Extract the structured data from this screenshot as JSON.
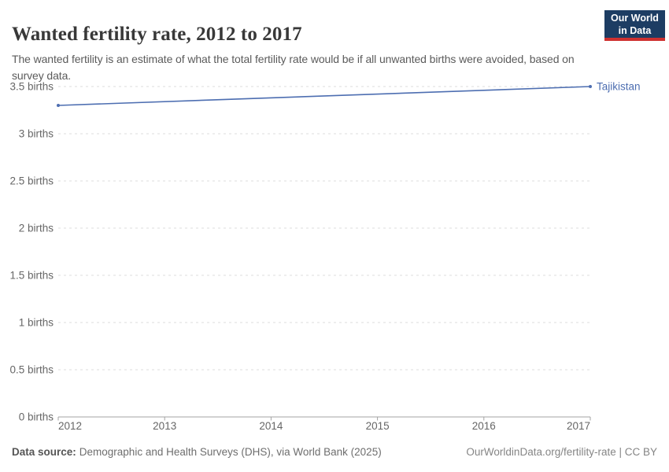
{
  "header": {
    "title": "Wanted fertility rate, 2012 to 2017",
    "subtitle": "The wanted fertility is an estimate of what the total fertility rate would be if all unwanted births were avoided, based on survey data.",
    "logo": {
      "line1": "Our World",
      "line2": "in Data",
      "bg_color": "#1d3d63",
      "accent_color": "#cf3130"
    }
  },
  "footer": {
    "source_label": "Data source:",
    "source_text": "Demographic and Health Surveys (DHS), via World Bank (2025)",
    "credit": "OurWorldinData.org/fertility-rate | CC BY"
  },
  "chart_data": {
    "type": "line",
    "title": "Wanted fertility rate, 2012 to 2017",
    "xlabel": "",
    "ylabel": "",
    "xlim": [
      2012,
      2017
    ],
    "ylim": [
      0,
      3.5
    ],
    "grid": "horizontal-dashed",
    "legend_position": "end-of-line-label",
    "series": [
      {
        "name": "Tajikistan",
        "color": "#4d6eb1",
        "points": [
          [
            2012,
            3.3
          ],
          [
            2017,
            3.5
          ]
        ]
      }
    ],
    "x_ticks": [
      {
        "value": 2012,
        "label": "2012"
      },
      {
        "value": 2013,
        "label": "2013"
      },
      {
        "value": 2014,
        "label": "2014"
      },
      {
        "value": 2015,
        "label": "2015"
      },
      {
        "value": 2016,
        "label": "2016"
      },
      {
        "value": 2017,
        "label": "2017"
      }
    ],
    "y_ticks": [
      {
        "value": 0,
        "label": "0 births"
      },
      {
        "value": 0.5,
        "label": "0.5 births"
      },
      {
        "value": 1,
        "label": "1 births"
      },
      {
        "value": 1.5,
        "label": "1.5 births"
      },
      {
        "value": 2,
        "label": "2 births"
      },
      {
        "value": 2.5,
        "label": "2.5 births"
      },
      {
        "value": 3,
        "label": "3 births"
      },
      {
        "value": 3.5,
        "label": "3.5 births"
      }
    ],
    "colors": {
      "grid": "#dcdcdc",
      "axis": "#a3a3a3",
      "tick_label": "#666666"
    }
  }
}
